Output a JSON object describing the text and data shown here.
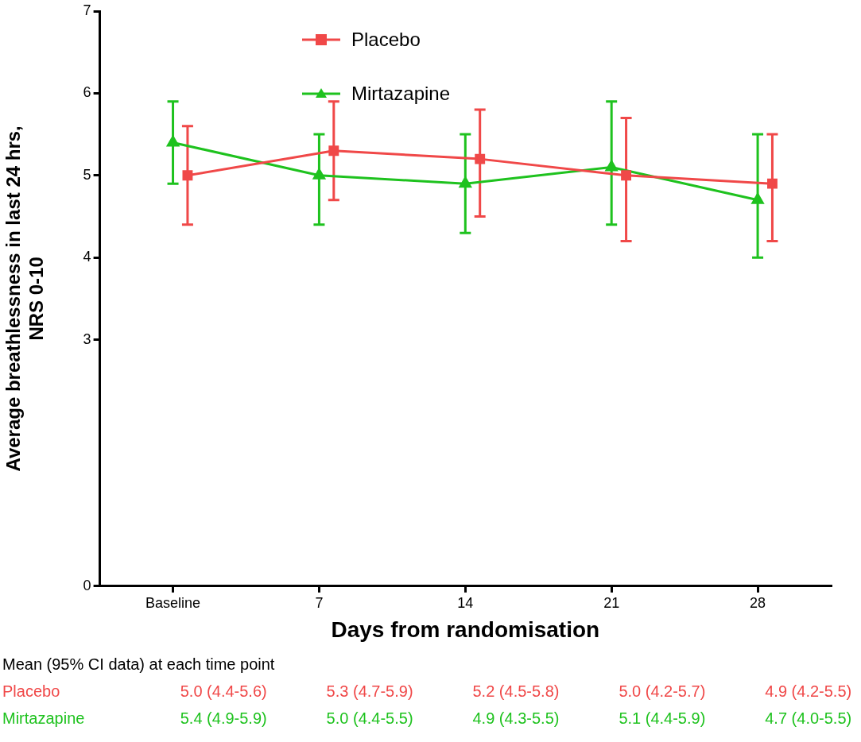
{
  "chart_data": {
    "type": "line",
    "xlabel": "Days from randomisation",
    "ylabel": "Average breathlessness in last 24 hrs, NRS 0-10",
    "categories": [
      "Baseline",
      "7",
      "14",
      "21",
      "28"
    ],
    "ylim": [
      0,
      7
    ],
    "yticks": [
      0,
      3,
      4,
      5,
      6,
      7
    ],
    "grid": false,
    "legend": "top",
    "line_style": "solid",
    "annotations": [
      "Mean (95% CI data) at each time point"
    ],
    "series": [
      {
        "name": "Placebo",
        "color": "#f04848",
        "marker": "square",
        "values": [
          5.0,
          5.3,
          5.2,
          5.0,
          4.9
        ],
        "errors": [
          [
            4.4,
            5.6
          ],
          [
            4.7,
            5.9
          ],
          [
            4.5,
            5.8
          ],
          [
            4.2,
            5.7
          ],
          [
            4.2,
            5.5
          ]
        ],
        "value_labels": [
          "5.0 (4.4-5.6)",
          "5.3 (4.7-5.9)",
          "5.2 (4.5-5.8)",
          "5.0 (4.2-5.7)",
          "4.9 (4.2-5.5)"
        ]
      },
      {
        "name": "Mirtazapine",
        "color": "#1ec21e",
        "marker": "triangle",
        "values": [
          5.4,
          5.0,
          4.9,
          5.1,
          4.7
        ],
        "errors": [
          [
            4.9,
            5.9
          ],
          [
            4.4,
            5.5
          ],
          [
            4.3,
            5.5
          ],
          [
            4.4,
            5.9
          ],
          [
            4.0,
            5.5
          ]
        ],
        "value_labels": [
          "5.4 (4.9-5.9)",
          "5.0 (4.4-5.5)",
          "4.9 (4.3-5.5)",
          "5.1 (4.4-5.9)",
          "4.7 (4.0-5.5)"
        ]
      }
    ]
  }
}
